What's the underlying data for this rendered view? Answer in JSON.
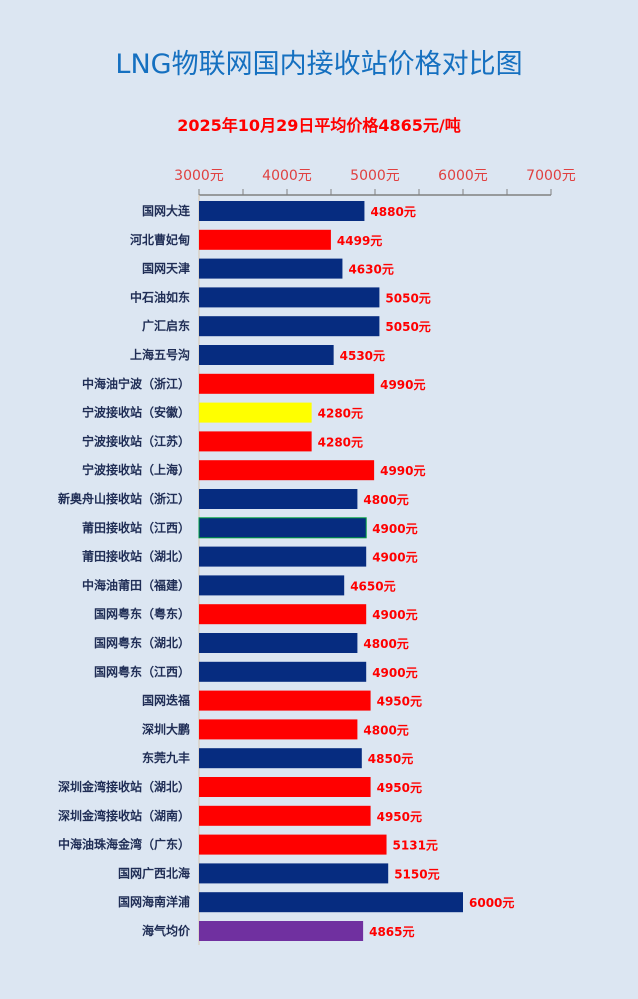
{
  "chart_data": {
    "type": "bar",
    "orientation": "horizontal",
    "title": "LNG物联网国内接收站价格对比图",
    "subtitle": "2025年10月29日平均价格4865元/吨",
    "xlim": [
      3000,
      7000
    ],
    "x_ticks": [
      "3000元",
      "4000元",
      "5000元",
      "6000元",
      "7000元"
    ],
    "x_tick_values": [
      3000,
      4000,
      5000,
      6000,
      7000
    ],
    "axis_position": "top",
    "grid": false,
    "unit": "元",
    "colors": {
      "navy": "#062c80",
      "red": "#ff0000",
      "yellow": "#ffff00",
      "purple": "#7030a0"
    },
    "categories": [
      "国网大连",
      "河北曹妃甸",
      "国网天津",
      "中石油如东",
      "广汇启东",
      "上海五号沟",
      "中海油宁波（浙江）",
      "宁波接收站（安徽）",
      "宁波接收站（江苏）",
      "宁波接收站（上海）",
      "新奥舟山接收站（浙江）",
      "莆田接收站（江西）",
      "莆田接收站（湖北）",
      "中海油莆田（福建）",
      "国网粤东（粤东）",
      "国网粤东（湖北）",
      "国网粤东（江西）",
      "国网迭福",
      "深圳大鹏",
      "东莞九丰",
      "深圳金湾接收站（湖北）",
      "深圳金湾接收站（湖南）",
      "中海油珠海金湾（广东）",
      "国网广西北海",
      "国网海南洋浦",
      "海气均价"
    ],
    "values": [
      4880,
      4499,
      4630,
      5050,
      5050,
      4530,
      4990,
      4280,
      4280,
      4990,
      4800,
      4900,
      4900,
      4650,
      4900,
      4800,
      4900,
      4950,
      4800,
      4850,
      4950,
      4950,
      5131,
      5150,
      6000,
      4865
    ],
    "value_labels": [
      "4880元",
      "4499元",
      "4630元",
      "5050元",
      "5050元",
      "4530元",
      "4990元",
      "4280元",
      "4280元",
      "4990元",
      "4800元",
      "4900元",
      "4900元",
      "4650元",
      "4900元",
      "4800元",
      "4900元",
      "4950元",
      "4800元",
      "4850元",
      "4950元",
      "4950元",
      "5131元",
      "5150元",
      "6000元",
      "4865元"
    ],
    "bar_colors": [
      "navy",
      "red",
      "navy",
      "navy",
      "navy",
      "navy",
      "red",
      "yellow",
      "red",
      "red",
      "navy",
      "navy",
      "navy",
      "navy",
      "red",
      "navy",
      "navy",
      "red",
      "red",
      "navy",
      "red",
      "red",
      "red",
      "navy",
      "navy",
      "purple"
    ]
  }
}
